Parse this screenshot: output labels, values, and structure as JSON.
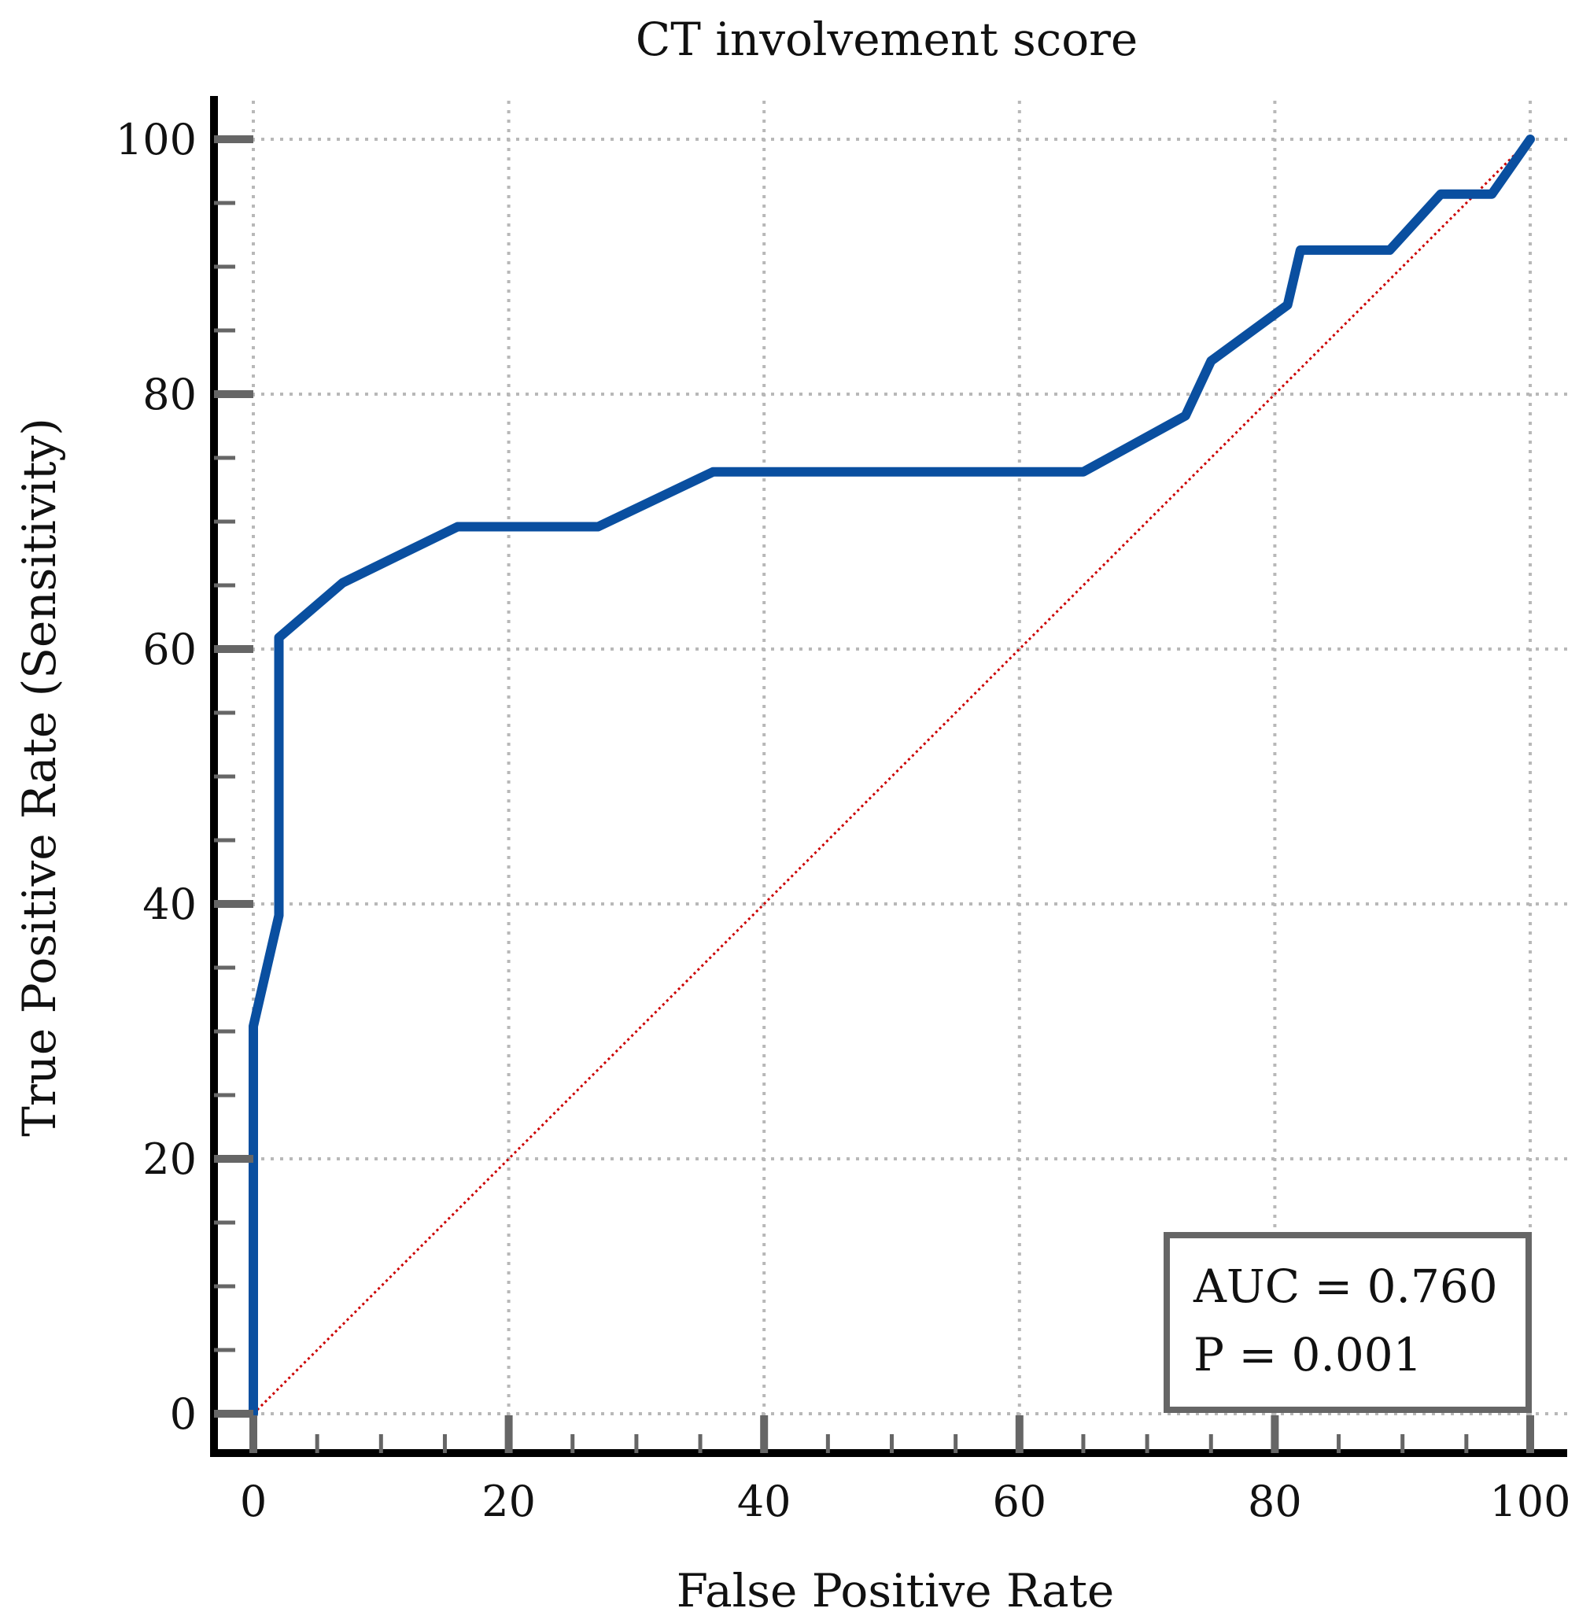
{
  "chart_data": {
    "type": "line",
    "title": "CT involvement score",
    "xlabel": "False Positive Rate",
    "ylabel": "True Positive Rate (Sensitivity)",
    "xlim": [
      0,
      100
    ],
    "ylim": [
      0,
      100
    ],
    "x_ticks": [
      0,
      20,
      40,
      60,
      80,
      100
    ],
    "y_ticks": [
      0,
      20,
      40,
      60,
      80,
      100
    ],
    "x_tick_labels": [
      "0",
      "20",
      "40",
      "60",
      "80",
      "100"
    ],
    "y_tick_labels": [
      "0",
      "20",
      "40",
      "60",
      "80",
      "100"
    ],
    "grid": true,
    "series": [
      {
        "name": "ROC curve",
        "color": "#0a4fa0",
        "x": [
          0,
          0,
          2,
          2,
          7,
          16,
          27,
          36,
          65,
          73,
          75,
          81,
          82,
          89,
          93,
          97,
          100
        ],
        "y": [
          0,
          30.4,
          39.1,
          60.9,
          65.2,
          69.6,
          69.6,
          73.9,
          73.9,
          78.3,
          82.6,
          87.0,
          91.3,
          91.3,
          95.7,
          95.7,
          100
        ]
      },
      {
        "name": "Reference line",
        "color": "#cc0000",
        "x": [
          0,
          100
        ],
        "y": [
          0,
          100
        ]
      }
    ],
    "annotations": {
      "auc": "AUC = 0.760",
      "p_value": "P = 0.001"
    }
  },
  "colors": {
    "axis": "#000000",
    "tick": "#666666",
    "grid": "#b8b8b8",
    "box": "#666666"
  }
}
